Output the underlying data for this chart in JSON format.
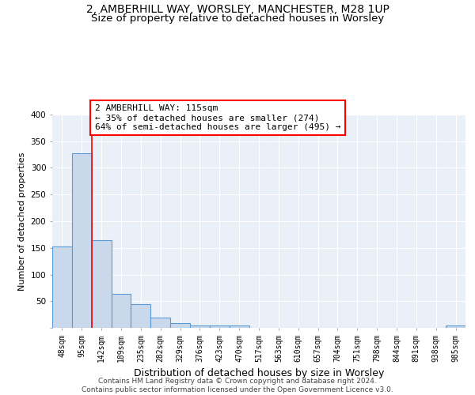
{
  "title1": "2, AMBERHILL WAY, WORSLEY, MANCHESTER, M28 1UP",
  "title2": "Size of property relative to detached houses in Worsley",
  "xlabel": "Distribution of detached houses by size in Worsley",
  "ylabel": "Number of detached properties",
  "footer1": "Contains HM Land Registry data © Crown copyright and database right 2024.",
  "footer2": "Contains public sector information licensed under the Open Government Licence v3.0.",
  "bin_labels": [
    "48sqm",
    "95sqm",
    "142sqm",
    "189sqm",
    "235sqm",
    "282sqm",
    "329sqm",
    "376sqm",
    "423sqm",
    "470sqm",
    "517sqm",
    "563sqm",
    "610sqm",
    "657sqm",
    "704sqm",
    "751sqm",
    "798sqm",
    "844sqm",
    "891sqm",
    "938sqm",
    "985sqm"
  ],
  "bar_heights": [
    152,
    328,
    165,
    63,
    44,
    20,
    9,
    5,
    4,
    5,
    0,
    0,
    0,
    0,
    0,
    0,
    0,
    0,
    0,
    0,
    4
  ],
  "bar_color": "#c9d9eb",
  "bar_edge_color": "#5b9bd5",
  "red_line_x": 1.5,
  "annotation_text1": "2 AMBERHILL WAY: 115sqm",
  "annotation_text2": "← 35% of detached houses are smaller (274)",
  "annotation_text3": "64% of semi-detached houses are larger (495) →",
  "annotation_box_color": "white",
  "annotation_box_edge": "red",
  "ylim": [
    0,
    400
  ],
  "yticks": [
    0,
    50,
    100,
    150,
    200,
    250,
    300,
    350,
    400
  ],
  "background_color": "#eaf0f8",
  "grid_color": "#d0dce8",
  "title1_fontsize": 10,
  "title2_fontsize": 9.5,
  "xlabel_fontsize": 9,
  "ylabel_fontsize": 8,
  "tick_fontsize": 7,
  "annotation_fontsize": 8,
  "footer_fontsize": 6.5
}
